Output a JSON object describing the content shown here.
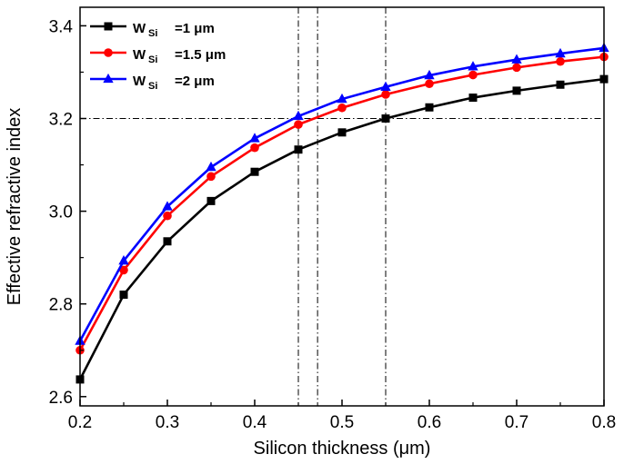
{
  "chart_data": {
    "type": "line",
    "xlabel": "Silicon thickness (μm)",
    "ylabel": "Effective refractive index",
    "xlim": [
      0.2,
      0.8
    ],
    "ylim": [
      2.58,
      3.44
    ],
    "xticks": [
      "0.2",
      "0.3",
      "0.4",
      "0.5",
      "0.6",
      "0.7",
      "0.8"
    ],
    "yticks": [
      "2.6",
      "2.8",
      "3.0",
      "3.2",
      "3.4"
    ],
    "x": [
      0.2,
      0.25,
      0.3,
      0.35,
      0.4,
      0.45,
      0.5,
      0.55,
      0.6,
      0.65,
      0.7,
      0.75,
      0.8
    ],
    "series": [
      {
        "name": "W_Si =1 μm",
        "legend_main": "W",
        "legend_sub": "Si",
        "legend_value": "=1 μm",
        "color": "#000000",
        "marker": "square",
        "values": [
          2.637,
          2.82,
          2.935,
          3.022,
          3.085,
          3.133,
          3.17,
          3.2,
          3.224,
          3.245,
          3.26,
          3.273,
          3.285
        ]
      },
      {
        "name": "W_Si =1.5 μm",
        "legend_main": "W",
        "legend_sub": "Si",
        "legend_value": "=1.5 μm",
        "color": "#ff0000",
        "marker": "circle",
        "values": [
          2.7,
          2.873,
          2.99,
          3.075,
          3.137,
          3.187,
          3.223,
          3.252,
          3.275,
          3.294,
          3.31,
          3.323,
          3.333
        ]
      },
      {
        "name": "W_Si =2 μm",
        "legend_main": "W",
        "legend_sub": "Si",
        "legend_value": "=2 μm",
        "color": "#0000ff",
        "marker": "triangle",
        "values": [
          2.72,
          2.893,
          3.01,
          3.095,
          3.157,
          3.205,
          3.242,
          3.268,
          3.293,
          3.312,
          3.327,
          3.34,
          3.352
        ]
      }
    ],
    "reference_lines": {
      "horizontal": [
        3.2
      ],
      "vertical": [
        0.45,
        0.472,
        0.55
      ]
    },
    "legend_position": "top-left",
    "grid": false
  }
}
